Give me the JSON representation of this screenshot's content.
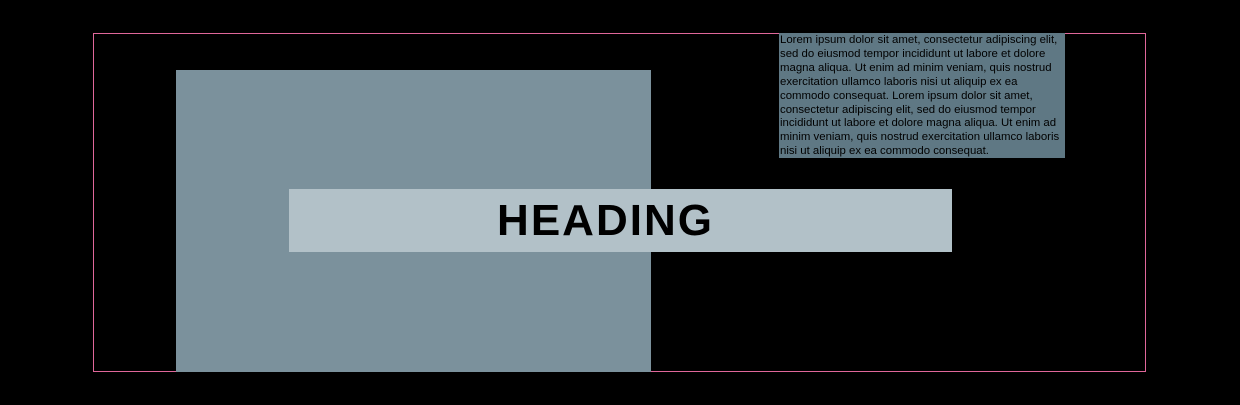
{
  "heading": "HEADING",
  "body_text": "Lorem ipsum dolor sit amet, consectetur adipiscing elit, sed do eiusmod tempor incididunt ut labore et dolore magna aliqua. Ut enim ad minim veniam, quis nostrud exercitation ullamco laboris nisi ut aliquip ex ea commodo consequat. Lorem ipsum dolor sit amet, consectetur adipiscing elit, sed do eiusmod tempor incididunt ut labore et dolore magna aliqua. Ut enim ad minim veniam, quis nostrud exercitation ullamco laboris nisi ut aliquip ex ea commodo consequat.",
  "colors": {
    "background": "#000000",
    "frame_border": "#e0679a",
    "image_block": "#7b919c",
    "heading_bar": "#b2c1c8",
    "text_block": "#5f7884"
  }
}
